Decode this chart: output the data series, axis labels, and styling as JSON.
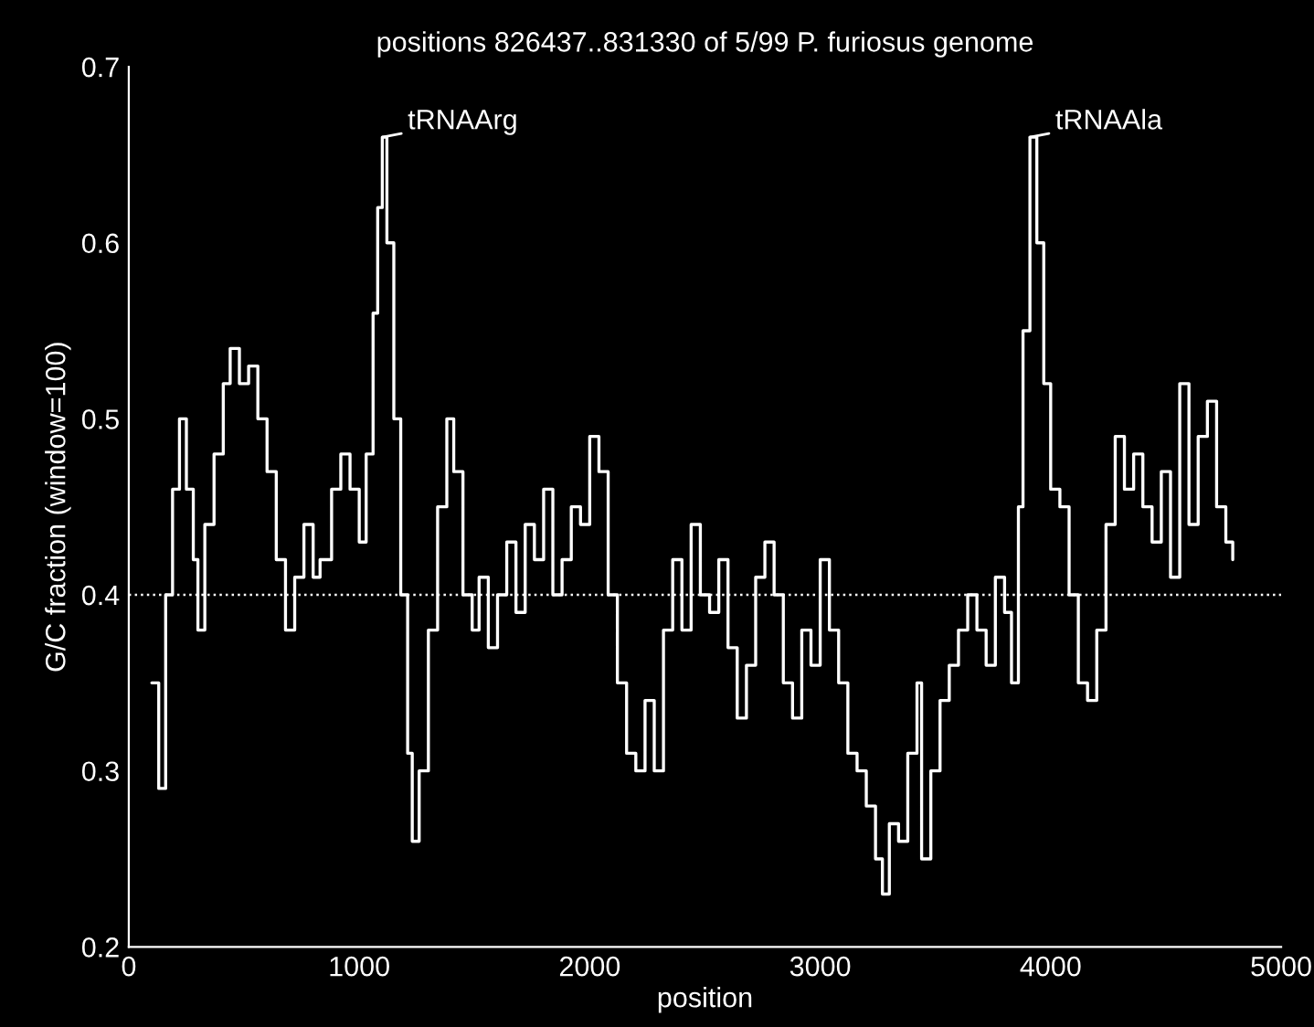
{
  "chart_data": {
    "type": "step",
    "title": "positions 826437..831330 of 5/99 P. furiosus genome",
    "xlabel": "position",
    "ylabel": "G/C fraction (window=100)",
    "xlim": [
      0,
      5000
    ],
    "xticks": [
      0,
      1000,
      2000,
      3000,
      4000,
      5000
    ],
    "ylim": [
      0.2,
      0.7
    ],
    "yticks": [
      0.2,
      0.3,
      0.4,
      0.5,
      0.6,
      0.7
    ],
    "grid": false,
    "legend": false,
    "marker": "none",
    "line_style": "solid",
    "ref_lines": [
      {
        "axis": "y",
        "value": 0.4,
        "label": null,
        "color": "#ffffff",
        "line_style": "dotted"
      }
    ],
    "annotations": [
      {
        "text": "tRNAArg",
        "x": 1100,
        "y": 0.66
      },
      {
        "text": "tRNAAla",
        "x": 3910,
        "y": 0.66
      }
    ],
    "series": [
      {
        "color": "#ffffff",
        "x": [
          100,
          130,
          160,
          190,
          220,
          250,
          280,
          300,
          330,
          370,
          410,
          440,
          480,
          520,
          560,
          600,
          640,
          680,
          720,
          760,
          800,
          830,
          880,
          920,
          960,
          1000,
          1030,
          1060,
          1080,
          1100,
          1120,
          1150,
          1180,
          1210,
          1230,
          1260,
          1300,
          1340,
          1380,
          1410,
          1450,
          1490,
          1520,
          1560,
          1600,
          1640,
          1680,
          1720,
          1760,
          1800,
          1840,
          1880,
          1920,
          1960,
          2000,
          2040,
          2080,
          2120,
          2160,
          2200,
          2240,
          2280,
          2320,
          2360,
          2400,
          2440,
          2480,
          2520,
          2560,
          2600,
          2640,
          2680,
          2720,
          2760,
          2800,
          2840,
          2880,
          2920,
          2960,
          3000,
          3040,
          3080,
          3120,
          3160,
          3200,
          3240,
          3270,
          3300,
          3340,
          3380,
          3420,
          3440,
          3480,
          3520,
          3560,
          3600,
          3640,
          3680,
          3720,
          3760,
          3800,
          3830,
          3860,
          3880,
          3910,
          3940,
          3970,
          4000,
          4040,
          4080,
          4120,
          4160,
          4200,
          4240,
          4280,
          4320,
          4360,
          4400,
          4440,
          4480,
          4520,
          4560,
          4600,
          4640,
          4680,
          4720,
          4760,
          4790
        ],
        "values": [
          0.35,
          0.29,
          0.4,
          0.46,
          0.5,
          0.46,
          0.42,
          0.38,
          0.44,
          0.48,
          0.52,
          0.54,
          0.52,
          0.53,
          0.5,
          0.47,
          0.42,
          0.38,
          0.41,
          0.44,
          0.41,
          0.42,
          0.46,
          0.48,
          0.46,
          0.43,
          0.48,
          0.56,
          0.62,
          0.66,
          0.6,
          0.5,
          0.4,
          0.31,
          0.26,
          0.3,
          0.38,
          0.45,
          0.5,
          0.47,
          0.4,
          0.38,
          0.41,
          0.37,
          0.4,
          0.43,
          0.39,
          0.44,
          0.42,
          0.46,
          0.4,
          0.42,
          0.45,
          0.44,
          0.49,
          0.47,
          0.4,
          0.35,
          0.31,
          0.3,
          0.34,
          0.3,
          0.38,
          0.42,
          0.38,
          0.44,
          0.4,
          0.39,
          0.42,
          0.37,
          0.33,
          0.36,
          0.41,
          0.43,
          0.4,
          0.35,
          0.33,
          0.38,
          0.36,
          0.42,
          0.38,
          0.35,
          0.31,
          0.3,
          0.28,
          0.25,
          0.23,
          0.27,
          0.26,
          0.31,
          0.35,
          0.25,
          0.3,
          0.34,
          0.36,
          0.38,
          0.4,
          0.38,
          0.36,
          0.41,
          0.39,
          0.35,
          0.45,
          0.55,
          0.66,
          0.6,
          0.52,
          0.46,
          0.45,
          0.4,
          0.35,
          0.34,
          0.38,
          0.44,
          0.49,
          0.46,
          0.48,
          0.45,
          0.43,
          0.47,
          0.41,
          0.52,
          0.44,
          0.49,
          0.51,
          0.45,
          0.43,
          0.42
        ]
      }
    ]
  }
}
